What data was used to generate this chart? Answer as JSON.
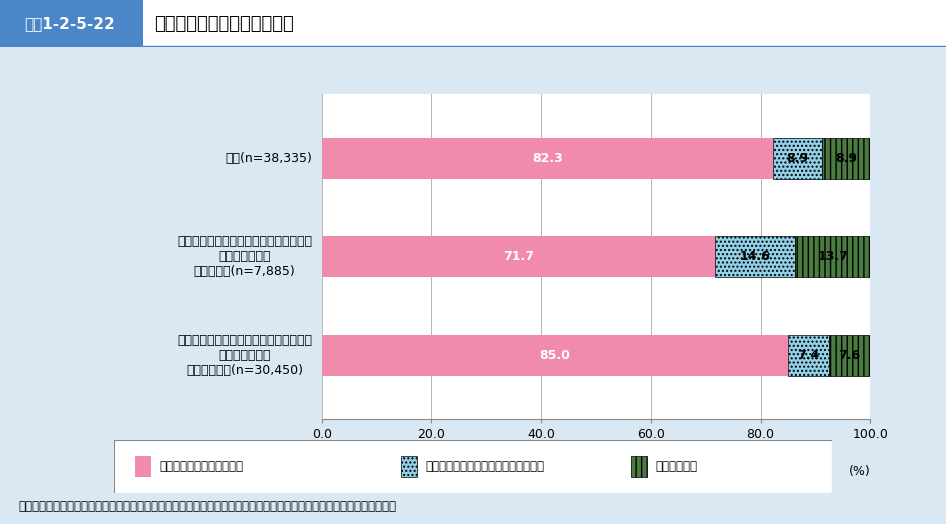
{
  "header_label": "図表1-2-5-22",
  "header_title": "看護職としての就業継続意向",
  "categories": [
    "全体(n=38,335)",
    "新型コロナウイルス感染症拡大の影響に\nよる偏見・差別\n『あった』(n=7,885)",
    "新型コロナウイルス感染症拡大の影響に\nよる偏見・差別\n『なかった』(n=30,450)"
  ],
  "series": [
    {
      "label": "看護職として働き続けたい",
      "values": [
        82.3,
        71.7,
        85.0
      ],
      "color": "#F08BAE",
      "hatch": ""
    },
    {
      "label": "離職して看護職以外の仕事で働きたい",
      "values": [
        8.9,
        14.6,
        7.4
      ],
      "color": "#92D0E8",
      "hatch": "...."
    },
    {
      "label": "働きたくない",
      "values": [
        8.9,
        13.7,
        7.6
      ],
      "color": "#4A7C3F",
      "hatch": "|||"
    }
  ],
  "xlim": [
    0,
    100
  ],
  "xticks": [
    0.0,
    20.0,
    40.0,
    60.0,
    80.0,
    100.0
  ],
  "xlabel_unit": "(%)",
  "bg_color": "#D9E8F2",
  "chart_bg": "#FFFFFF",
  "footer": "資料：公益社団法人日本看護協会「看護職員の新型コロナウイルス感染症対応に関する実態調査【看護管理者・病院】」",
  "header_bg": "#4A86C8",
  "header_text_color": "#FFFFFF",
  "bar_height": 0.42,
  "label_fontsize": 9,
  "tick_fontsize": 9,
  "cat_fontsize": 9
}
